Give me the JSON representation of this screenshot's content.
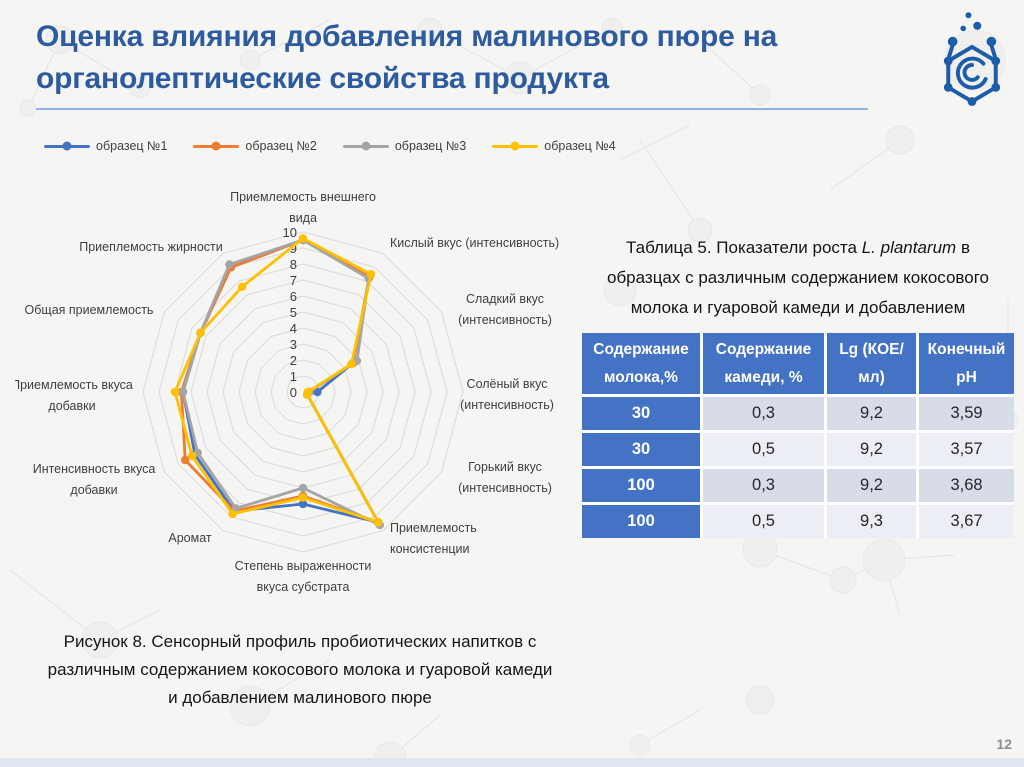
{
  "slide": {
    "title": "Оценка влияния добавления малинового пюре на\nорганолептические свойства продукта",
    "page_number": "12"
  },
  "figure_caption": "Рисунок 8. Сенсорный профиль пробиотических напитков с\nразличным содержанием кокосового молока и гуаровой камеди\nи добавлением малинового пюре",
  "table": {
    "title_prefix": "Таблица 5. Показатели роста ",
    "title_italic": "L. plantarum",
    "title_suffix": " в\nобразцах с различным содержанием кокосового\nмолока и гуаровой камеди и добавлением\nмалинового пюре",
    "headers": [
      "Содержание молока,%",
      "Содержание камеди, %",
      "Lg (КОЕ/мл)",
      "Конечный pH"
    ],
    "rows": [
      [
        "30",
        "0,3",
        "9,2",
        "3,59"
      ],
      [
        "30",
        "0,5",
        "9,2",
        "3,57"
      ],
      [
        "100",
        "0,3",
        "9,2",
        "3,68"
      ],
      [
        "100",
        "0,5",
        "9,3",
        "3,67"
      ]
    ]
  },
  "chart_data": {
    "type": "radar",
    "title": "",
    "categories": [
      "Приемлемость внешнего вида",
      "Кислый вкус (интенсивность)",
      "Сладкий вкус (интенсивность)",
      "Солёный вкус (интенсивность)",
      "Горький вкус (интенсивность)",
      "Приемлемость консистенции",
      "Степень выраженности вкуса субстрата",
      "Аромат",
      "Интенсивность вкуса добавки",
      "Приемлемость вкуса добавки",
      "Общая приемлемость",
      "Приеплемость жирности"
    ],
    "label_lines": [
      [
        "Приемлемость внешнего",
        "вида"
      ],
      [
        "Кислый вкус (интенсивность)"
      ],
      [
        "Сладкий вкус",
        "(интенсивность)"
      ],
      [
        "Солёный вкус",
        "(интенсивность)"
      ],
      [
        "Горький вкус",
        "(интенсивность)"
      ],
      [
        "Приемлемость",
        "консистенции"
      ],
      [
        "Степень выраженности",
        "вкуса субстрата"
      ],
      [
        "Аромат"
      ],
      [
        "Интенсивность вкуса",
        "добавки"
      ],
      [
        "Приемлемость вкуса",
        "добавки"
      ],
      [
        "Общая приемлемость"
      ],
      [
        "Приеплемость жирности"
      ]
    ],
    "series": [
      {
        "name": "образец №1",
        "color": "#4472C4",
        "values": [
          9.5,
          8.3,
          3.6,
          0.9,
          0.3,
          9.4,
          7.0,
          8.6,
          7.8,
          7.5,
          7.4,
          9.0
        ]
      },
      {
        "name": "образец №2",
        "color": "#ED7D31",
        "values": [
          9.5,
          8.3,
          3.6,
          0.4,
          0.3,
          9.4,
          6.5,
          8.6,
          8.5,
          7.6,
          7.4,
          9.0
        ]
      },
      {
        "name": "образец №3",
        "color": "#A5A5A5",
        "values": [
          9.5,
          8.2,
          3.9,
          0.4,
          0.3,
          9.6,
          6.0,
          8.4,
          7.6,
          7.5,
          7.4,
          9.2
        ]
      },
      {
        "name": "образец №4",
        "color": "#FFC000",
        "values": [
          9.6,
          8.5,
          3.5,
          0.3,
          0.3,
          9.4,
          6.6,
          8.8,
          8.0,
          8.0,
          7.4,
          7.6
        ]
      }
    ],
    "axis": {
      "min": 0,
      "max": 10,
      "step": 1,
      "tick_labels": [
        "0",
        "1",
        "2",
        "3",
        "4",
        "5",
        "6",
        "7",
        "8",
        "9",
        "10"
      ]
    },
    "grid": "concentric rings on, spokes off",
    "legend_position": "top-left"
  },
  "colors": {
    "title_text": "#2E5B9E",
    "title_underline": "#8FB4DC",
    "table_header_bg": "#4472C4",
    "table_band_dark": "#D8DCE9",
    "table_band_light": "#ECEEF5",
    "grid_ring": "#D9D9D9",
    "logo_blue": "#1D5CA9",
    "page_number_gray": "#8a8f94"
  }
}
